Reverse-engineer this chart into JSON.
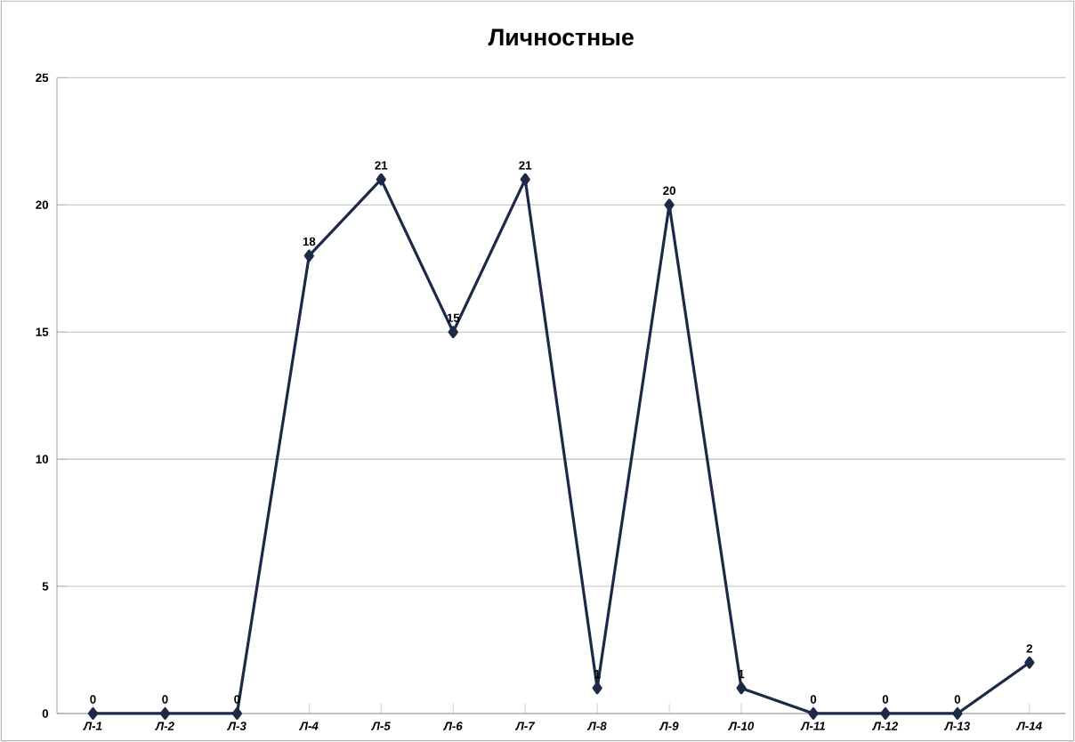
{
  "chart_data": {
    "type": "line",
    "title": "Личностные",
    "categories": [
      "Л-1",
      "Л-2",
      "Л-3",
      "Л-4",
      "Л-5",
      "Л-6",
      "Л-7",
      "Л-8",
      "Л-9",
      "Л-10",
      "Л-11",
      "Л-12",
      "Л-13",
      "Л-14"
    ],
    "values": [
      0,
      0,
      0,
      18,
      21,
      15,
      21,
      1,
      20,
      1,
      0,
      0,
      0,
      2
    ],
    "color": "#1c2a48",
    "ylim": [
      0,
      25
    ],
    "yticks": [
      0,
      5,
      10,
      15,
      20,
      25
    ],
    "grid": "y",
    "marker": "diamond",
    "line_style": "solid",
    "data_labels": true
  }
}
